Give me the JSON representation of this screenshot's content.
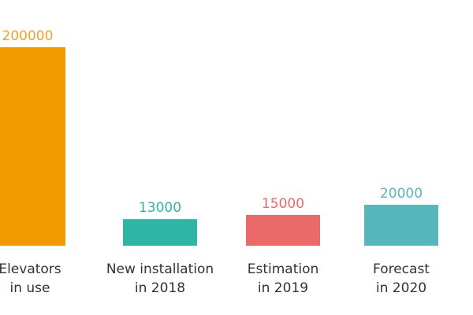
{
  "chart_data": {
    "type": "bar",
    "categories": [
      [
        "Elevators",
        "in use"
      ],
      [
        "New installation",
        "in 2018"
      ],
      [
        "Estimation",
        "in 2019"
      ],
      [
        "Forecast",
        "in 2020"
      ]
    ],
    "values": [
      200000,
      13000,
      15000,
      20000
    ],
    "value_labels": [
      "200000",
      "13000",
      "15000",
      "20000"
    ],
    "colors": [
      "#f29b00",
      "#2eb5a6",
      "#ea6a6a",
      "#57b7bd"
    ],
    "label_colors": [
      "#f0a22a",
      "#2eb5a6",
      "#ea6a6a",
      "#57b7bd"
    ],
    "category_label_color": "#333333",
    "axis_scale": "broken",
    "grid": false,
    "legend": "none"
  }
}
